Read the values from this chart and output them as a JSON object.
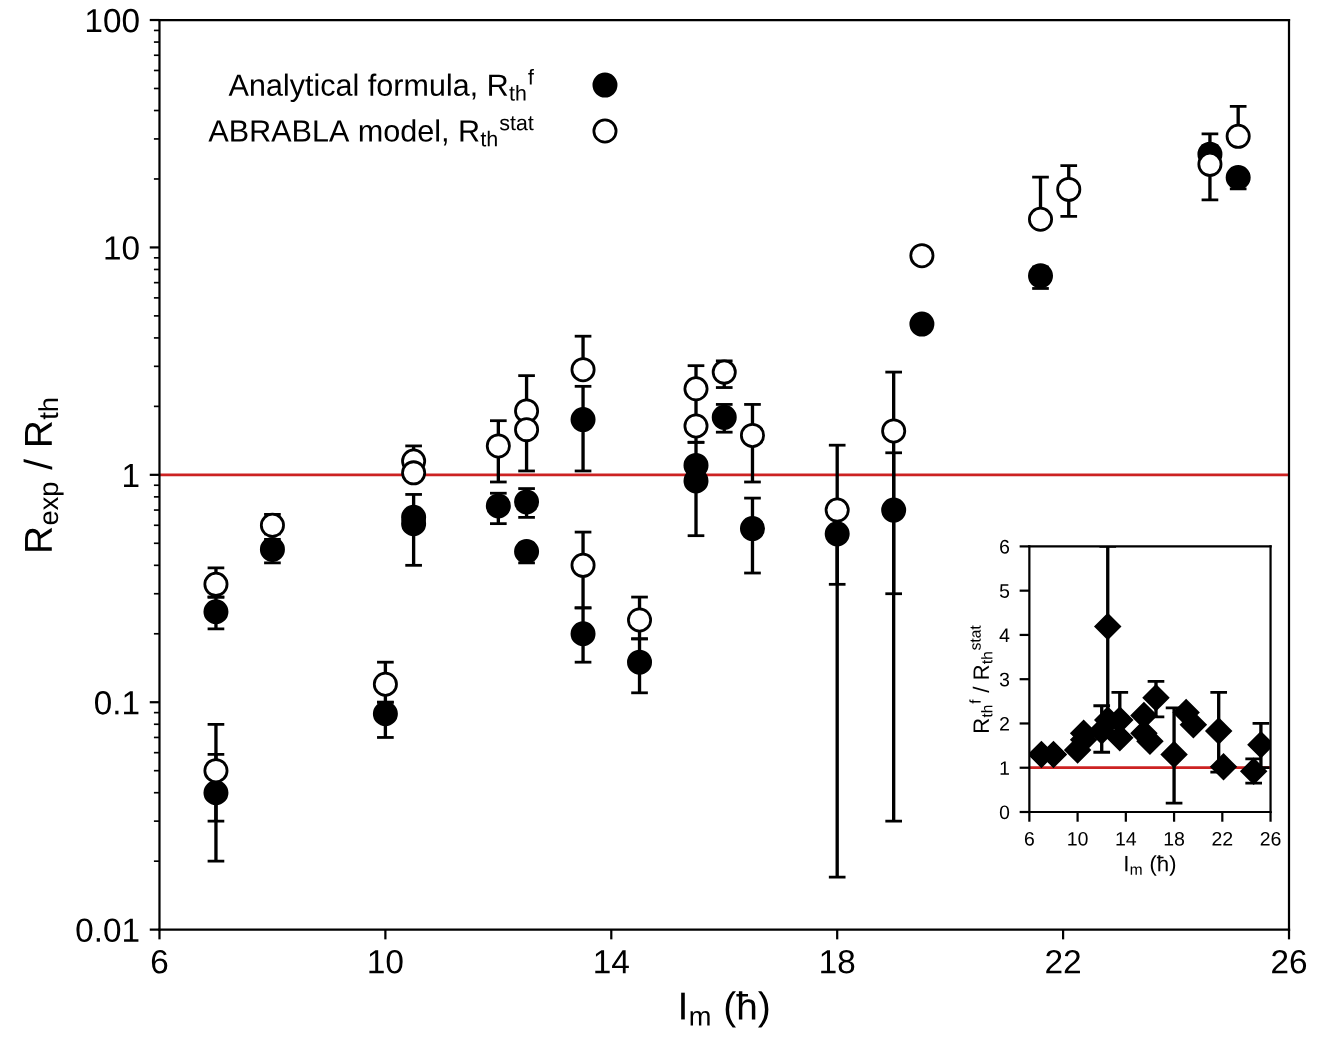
{
  "chart_data": [
    {
      "type": "scatter",
      "xlabel": "I$_{m}$ (ħ)",
      "ylabel": "R$_{exp}$ / R$_{th}$",
      "log": "y",
      "xlim": [
        6,
        26
      ],
      "xticks": [
        6,
        10,
        14,
        18,
        22,
        26
      ],
      "ylim": [
        0.01,
        100
      ],
      "yticks": [
        0.01,
        0.1,
        1,
        10,
        100
      ],
      "grid": false,
      "legend": "top left",
      "marker": "circle",
      "ref_lines": [
        {
          "axis": "y",
          "value": 1,
          "color": "#cc2222"
        }
      ],
      "series": [
        {
          "name": "Analytical formula, R$_{th}$$^{f}$",
          "color": "#000000",
          "x": [
            7,
            7,
            8,
            10,
            10.5,
            10.5,
            12,
            12.5,
            12.5,
            13.5,
            13.5,
            14.5,
            15.5,
            15.5,
            16,
            16.5,
            18,
            19,
            19.5,
            21.6,
            24.6,
            25.1
          ],
          "values": [
            0.25,
            0.04,
            0.47,
            0.089,
            0.65,
            0.61,
            0.73,
            0.76,
            0.46,
            1.75,
            0.2,
            0.15,
            1.1,
            0.94,
            1.79,
            0.58,
            0.55,
            0.7,
            4.6,
            7.5,
            25.7,
            20.3
          ],
          "errors": [
            [
              0.21,
              0.29
            ],
            [
              0.02,
              0.059
            ],
            [
              0.41,
              0.52
            ],
            [
              0.07,
              0.1
            ],
            [
              0.4,
              0.82
            ],
            null,
            [
              0.61,
              0.83
            ],
            [
              0.65,
              0.87
            ],
            [
              0.41,
              0.5
            ],
            [
              1.04,
              2.45
            ],
            [
              0.15,
              0.26
            ],
            [
              0.11,
              0.19
            ],
            [
              0.54,
              1.39
            ],
            null,
            [
              1.54,
              2.04
            ],
            [
              0.37,
              0.79
            ],
            [
              0.017,
              0.55
            ],
            [
              0.03,
              1.25
            ],
            null,
            [
              6.6,
              8.2
            ],
            [
              24,
              28
            ],
            [
              18.1,
              21.7
            ]
          ]
        },
        {
          "name": "ABRABLA model, R$_{th}$$^{stat}$",
          "color": "#ffffff",
          "x": [
            7,
            7,
            8,
            10,
            10.5,
            10.5,
            12,
            12.5,
            12.5,
            13.5,
            13.5,
            14.5,
            15.5,
            15.5,
            16,
            16.5,
            18,
            19,
            19.5,
            21.6,
            22.1,
            24.6,
            25.1
          ],
          "values": [
            0.33,
            0.05,
            0.6,
            0.12,
            1.15,
            1.02,
            1.34,
            1.91,
            1.58,
            2.9,
            0.4,
            0.23,
            2.39,
            1.64,
            2.83,
            1.49,
            0.7,
            1.56,
            9.2,
            13.3,
            18,
            23.2,
            30.8
          ],
          "errors": [
            [
              0.29,
              0.39
            ],
            [
              0.03,
              0.08
            ],
            [
              0.55,
              0.67
            ],
            [
              0.1,
              0.15
            ],
            [
              1.15,
              1.34
            ],
            null,
            [
              0.93,
              1.73
            ],
            [
              1.04,
              2.73
            ],
            null,
            [
              2.9,
              4.07
            ],
            [
              0.26,
              0.56
            ],
            [
              0.19,
              0.29
            ],
            [
              1.39,
              3.02
            ],
            null,
            [
              2.42,
              3.17
            ],
            [
              0.93,
              2.04
            ],
            [
              0.33,
              1.35
            ],
            [
              0.3,
              2.83
            ],
            null,
            [
              13.3,
              20.4
            ],
            [
              13.7,
              22.9
            ],
            [
              16.2,
              31.6
            ],
            [
              30.8,
              41.7
            ]
          ]
        }
      ]
    },
    {
      "type": "scatter",
      "xlabel": "I$_{m}$ (ħ)",
      "ylabel": "R$_{th}$$^{f}$ / R$_{th}$$^{stat}$",
      "xlim": [
        6,
        26
      ],
      "xticks": [
        6,
        10,
        14,
        18,
        22,
        26
      ],
      "ylim": [
        0,
        6
      ],
      "yticks": [
        0,
        1,
        2,
        3,
        4,
        5,
        6
      ],
      "grid": false,
      "marker": "diamond",
      "ref_lines": [
        {
          "axis": "y",
          "value": 1,
          "color": "#cc2222"
        }
      ],
      "series": [
        {
          "color": "#000000",
          "x": [
            7,
            8,
            10,
            10.5,
            10.5,
            12,
            12.5,
            12.5,
            13.5,
            13.5,
            15.5,
            15.5,
            16,
            16.5,
            18,
            19,
            19.6,
            21.7,
            22.1,
            24.6,
            25.2
          ],
          "values": [
            1.3,
            1.3,
            1.4,
            1.78,
            1.63,
            1.83,
            4.19,
            2.08,
            2.08,
            1.68,
            2.18,
            1.78,
            1.6,
            2.58,
            1.3,
            2.25,
            1.97,
            1.83,
            1.02,
            0.92,
            1.52
          ],
          "errors": [
            null,
            null,
            null,
            null,
            null,
            [
              1.35,
              2.4
            ],
            [
              1.9,
              6
            ],
            null,
            [
              2.08,
              2.7
            ],
            null,
            null,
            null,
            null,
            [
              2.15,
              2.95
            ],
            [
              0.2,
              2.35
            ],
            null,
            null,
            [
              0.9,
              2.7
            ],
            null,
            [
              0.65,
              1.2
            ],
            [
              1.0,
              2.0
            ]
          ]
        }
      ]
    }
  ]
}
